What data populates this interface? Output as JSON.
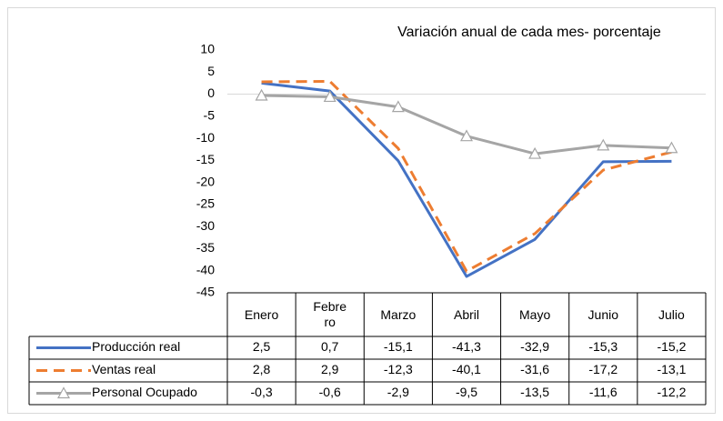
{
  "chart_data": {
    "type": "line",
    "title": "Variación anual de cada mes- porcentaje",
    "categories": [
      "Enero",
      "Febrero",
      "Marzo",
      "Abril",
      "Mayo",
      "Junio",
      "Julio"
    ],
    "ylim": [
      -45,
      10
    ],
    "yticks": [
      10,
      5,
      0,
      -5,
      -10,
      -15,
      -20,
      -25,
      -30,
      -35,
      -40,
      -45
    ],
    "grid": false,
    "series": [
      {
        "name": "Producción real",
        "color": "#4472c4",
        "dash": false,
        "marker": false,
        "values": [
          2.5,
          0.7,
          -15.1,
          -41.3,
          -32.9,
          -15.3,
          -15.2
        ],
        "value_labels": [
          "2,5",
          "0,7",
          "-15,1",
          "-41,3",
          "-32,9",
          "-15,3",
          "-15,2"
        ]
      },
      {
        "name": "Ventas real",
        "color": "#ed7d31",
        "dash": true,
        "marker": false,
        "values": [
          2.8,
          2.9,
          -12.3,
          -40.1,
          -31.6,
          -17.2,
          -13.1
        ],
        "value_labels": [
          "2,8",
          "2,9",
          "-12,3",
          "-40,1",
          "-31,6",
          "-17,2",
          "-13,1"
        ]
      },
      {
        "name": "Personal Ocupado",
        "color": "#a5a5a5",
        "dash": false,
        "marker": true,
        "values": [
          -0.3,
          -0.6,
          -2.9,
          -9.5,
          -13.5,
          -11.6,
          -12.2
        ],
        "value_labels": [
          "-0,3",
          "-0,6",
          "-2,9",
          "-9,5",
          "-13,5",
          "-11,6",
          "-12,2"
        ]
      }
    ]
  }
}
